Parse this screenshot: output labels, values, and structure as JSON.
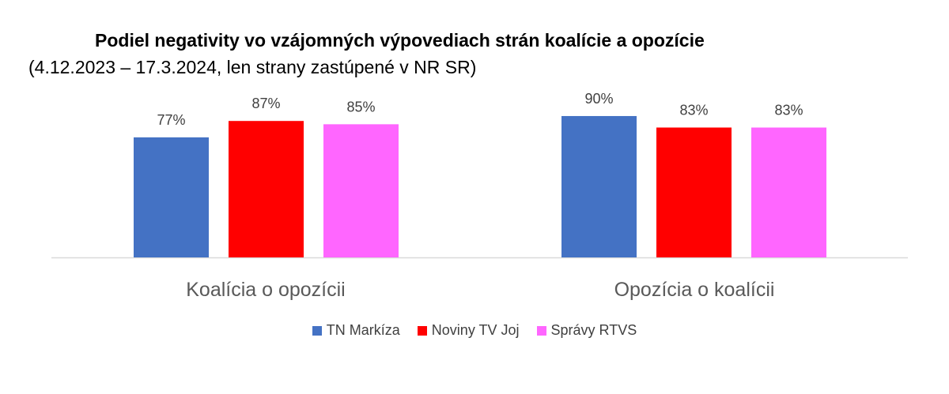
{
  "chart_data": {
    "type": "bar",
    "title": "Podiel negativity vo vzájomných výpovediach strán koalície a opozície",
    "subtitle": "(4.12.2023 – 17.3.2024, len strany zastúpené v NR SR)",
    "categories": [
      "Koalícia o opozícii",
      "Opozícia o koalícii"
    ],
    "series": [
      {
        "name": "TN Markíza",
        "color": "#4472C4",
        "values": [
          77,
          90
        ],
        "labels": [
          "77%",
          "90%"
        ]
      },
      {
        "name": "Noviny TV Joj",
        "color": "#FF0000",
        "values": [
          87,
          83
        ],
        "labels": [
          "87%",
          "83%"
        ]
      },
      {
        "name": "Správy RTVS",
        "color": "#FF66FF",
        "values": [
          85,
          83
        ],
        "labels": [
          "85%",
          "83%"
        ]
      }
    ],
    "value_unit": "%",
    "ylim": [
      0,
      100
    ],
    "grid": false,
    "legend_position": "bottom"
  }
}
